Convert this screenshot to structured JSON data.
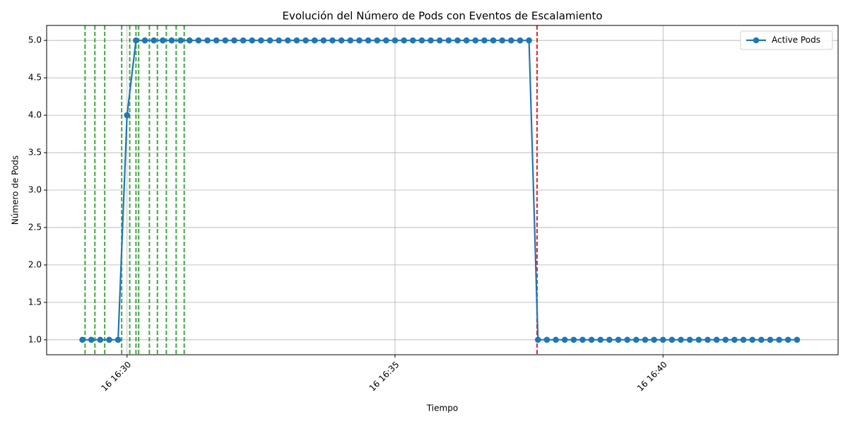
{
  "chart_data": {
    "type": "line",
    "title": "Evolución del Número de Pods con Eventos de Escalamiento",
    "x_label": "Tiempo",
    "y_label": "Número de Pods",
    "x": [
      "16 16:29:10",
      "16 16:29:20",
      "16 16:29:30",
      "16 16:29:40",
      "16 16:29:50",
      "16 16:30:00",
      "16 16:30:10",
      "16 16:30:20",
      "16 16:30:30",
      "16 16:30:40",
      "16 16:30:50",
      "16 16:31:00",
      "16 16:31:10",
      "16 16:31:20",
      "16 16:31:30",
      "16 16:31:40",
      "16 16:31:50",
      "16 16:32:00",
      "16 16:32:10",
      "16 16:32:20",
      "16 16:32:30",
      "16 16:32:40",
      "16 16:32:50",
      "16 16:33:00",
      "16 16:33:10",
      "16 16:33:20",
      "16 16:33:30",
      "16 16:33:40",
      "16 16:33:50",
      "16 16:34:00",
      "16 16:34:10",
      "16 16:34:20",
      "16 16:34:30",
      "16 16:34:40",
      "16 16:34:50",
      "16 16:35:00",
      "16 16:35:10",
      "16 16:35:20",
      "16 16:35:30",
      "16 16:35:40",
      "16 16:35:50",
      "16 16:36:00",
      "16 16:36:10",
      "16 16:36:20",
      "16 16:36:30",
      "16 16:36:40",
      "16 16:36:50",
      "16 16:37:00",
      "16 16:37:10",
      "16 16:37:20",
      "16 16:37:30",
      "16 16:37:40",
      "16 16:37:50",
      "16 16:38:00",
      "16 16:38:10",
      "16 16:38:20",
      "16 16:38:30",
      "16 16:38:40",
      "16 16:38:50",
      "16 16:39:00",
      "16 16:39:10",
      "16 16:39:20",
      "16 16:39:30",
      "16 16:39:40",
      "16 16:39:50",
      "16 16:40:00",
      "16 16:40:10",
      "16 16:40:20",
      "16 16:40:30",
      "16 16:40:40",
      "16 16:40:50",
      "16 16:41:00",
      "16 16:41:10",
      "16 16:41:20",
      "16 16:41:30",
      "16 16:41:40",
      "16 16:41:50",
      "16 16:42:00",
      "16 16:42:10",
      "16 16:42:20",
      "16 16:42:30"
    ],
    "series": [
      {
        "name": "Active Pods",
        "color": "#1f77b4",
        "values": [
          1,
          1,
          1,
          1,
          1,
          4,
          5,
          5,
          5,
          5,
          5,
          5,
          5,
          5,
          5,
          5,
          5,
          5,
          5,
          5,
          5,
          5,
          5,
          5,
          5,
          5,
          5,
          5,
          5,
          5,
          5,
          5,
          5,
          5,
          5,
          5,
          5,
          5,
          5,
          5,
          5,
          5,
          5,
          5,
          5,
          5,
          5,
          5,
          5,
          5,
          5,
          1,
          1,
          1,
          1,
          1,
          1,
          1,
          1,
          1,
          1,
          1,
          1,
          1,
          1,
          1,
          1,
          1,
          1,
          1,
          1,
          1,
          1,
          1,
          1,
          1,
          1,
          1,
          1,
          1,
          1
        ]
      }
    ],
    "scale_up_events": {
      "color": "#2ca02c",
      "times": [
        "16 16:29:13",
        "16 16:29:24",
        "16 16:29:35",
        "16 16:29:54",
        "16 16:30:03",
        "16 16:30:10",
        "16 16:30:13",
        "16 16:30:25",
        "16 16:30:34",
        "16 16:30:44",
        "16 16:30:55",
        "16 16:31:04"
      ]
    },
    "scale_down_events": {
      "color": "#e31a1c",
      "times": [
        "16 16:37:39"
      ]
    },
    "xlim": [
      "16 16:28:30",
      "16 16:43:16"
    ],
    "xticks": [
      "16 16:30",
      "16 16:35",
      "16 16:40"
    ],
    "ylim": [
      0.8,
      5.2
    ],
    "yticks": [
      {
        "value": 1,
        "label": "1.0"
      },
      {
        "value": 1.5,
        "label": "1.5"
      },
      {
        "value": 2,
        "label": "2.0"
      },
      {
        "value": 2.5,
        "label": "2.5"
      },
      {
        "value": 3,
        "label": "3.0"
      },
      {
        "value": 3.5,
        "label": "3.5"
      },
      {
        "value": 4,
        "label": "4.0"
      },
      {
        "value": 4.5,
        "label": "4.5"
      },
      {
        "value": 5,
        "label": "5.0"
      }
    ],
    "grid": true,
    "legend": "upper right"
  }
}
